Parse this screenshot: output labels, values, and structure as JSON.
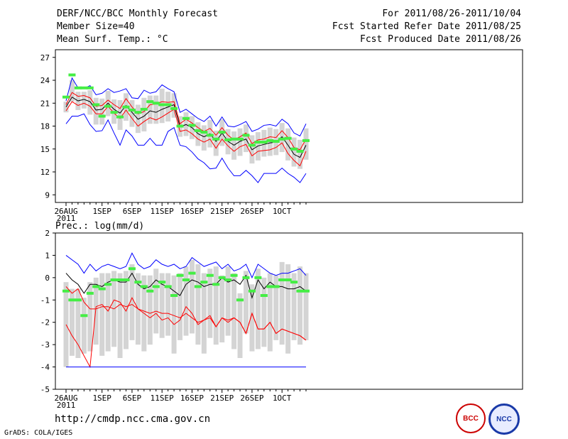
{
  "header": {
    "left_line1": "DERF/NCC/BCC Monthly Forecast",
    "left_line2": "Member Size=40",
    "left_line3": "Mean Surf. Temp.: °C",
    "right_line1": "For 2011/08/26-2011/10/04",
    "right_line2": "Fcst Started Refer Date 2011/08/25",
    "right_line3": "Fcst Produced Date 2011/08/26"
  },
  "footer": {
    "url": "http://cmdp.ncc.cma.gov.cn",
    "credit": "GrADS: COLA/IGES",
    "logo1_label": "BCC",
    "logo2_label": "NCC"
  },
  "chart_data": [
    {
      "type": "box-ensemble",
      "title": "Mean Surf. Temp.: °C",
      "ylim": [
        8,
        28
      ],
      "yticks": [
        9,
        12,
        15,
        18,
        21,
        24,
        27
      ],
      "x_tick_labels": [
        "26AUG\n2011",
        "1SEP",
        "6SEP",
        "11SEP",
        "16SEP",
        "21SEP",
        "26SEP",
        "1OCT"
      ],
      "x_tick_days": [
        0,
        6,
        11,
        16,
        21,
        26,
        31,
        36
      ],
      "days": 40,
      "series": [
        {
          "name": "max",
          "color": "#0000ff",
          "values": [
            18.3,
            19.3,
            19.3,
            19.6,
            18.2,
            17.3,
            17.4,
            18.8,
            17.1,
            15.5,
            17.5,
            16.7,
            15.5,
            15.5,
            16.4,
            15.5,
            15.5,
            17.3,
            17.8,
            15.5,
            15.3,
            14.6,
            13.7,
            13.2,
            12.4,
            12.5,
            13.8,
            12.5,
            11.5,
            11.5,
            12.2,
            11.5,
            10.6,
            11.8,
            11.8,
            11.8,
            12.5,
            11.8,
            11.3,
            10.6,
            11.8
          ]
        },
        {
          "name": "min",
          "color": "#0000ff",
          "values": [
            21.3,
            24.3,
            23.0,
            22.9,
            23.3,
            22.1,
            22.3,
            22.9,
            22.4,
            22.6,
            22.9,
            21.7,
            21.6,
            22.7,
            22.3,
            22.5,
            23.4,
            22.9,
            22.5,
            19.8,
            20.2,
            19.6,
            19.0,
            18.6,
            19.3,
            18.0,
            19.2,
            18.0,
            17.9,
            18.2,
            18.6,
            17.3,
            17.6,
            18.1,
            18.2,
            18.0,
            18.9,
            18.3,
            17.1,
            16.7,
            18.3
          ]
        },
        {
          "name": "upper",
          "color": "#ff0000",
          "values": [
            20.8,
            22.4,
            21.9,
            22.0,
            21.7,
            20.6,
            20.7,
            21.4,
            20.8,
            20.3,
            21.6,
            20.5,
            19.6,
            19.9,
            20.8,
            20.9,
            21.2,
            21.1,
            21.2,
            18.3,
            18.9,
            18.4,
            17.8,
            17.3,
            17.7,
            16.8,
            17.8,
            16.8,
            16.2,
            16.6,
            17.1,
            15.7,
            16.2,
            16.3,
            16.6,
            16.5,
            17.4,
            16.5,
            15.2,
            14.9,
            16.3
          ]
        },
        {
          "name": "lower",
          "color": "#ff0000",
          "values": [
            20.0,
            21.2,
            20.7,
            21.0,
            20.6,
            19.6,
            19.6,
            20.6,
            19.7,
            19.0,
            20.1,
            19.0,
            18.0,
            18.6,
            19.1,
            18.8,
            19.2,
            19.7,
            20.2,
            17.3,
            17.5,
            17.0,
            16.3,
            15.9,
            16.3,
            15.1,
            16.3,
            15.4,
            14.7,
            15.3,
            15.6,
            14.1,
            14.7,
            14.8,
            14.9,
            15.2,
            15.8,
            14.4,
            13.5,
            12.8,
            14.7
          ]
        },
        {
          "name": "mean",
          "color": "#000000",
          "values": [
            20.5,
            21.8,
            21.3,
            21.5,
            21.2,
            20.1,
            20.2,
            21.0,
            20.2,
            19.7,
            20.7,
            19.8,
            18.9,
            19.3,
            20.0,
            19.8,
            20.2,
            20.5,
            20.8,
            17.9,
            18.2,
            17.8,
            17.0,
            16.6,
            17.0,
            16.0,
            17.1,
            16.0,
            15.5,
            16.0,
            16.3,
            14.9,
            15.4,
            15.6,
            15.8,
            15.9,
            16.6,
            15.5,
            14.3,
            13.9,
            15.5
          ]
        },
        {
          "name": "observed",
          "color": "#44ee44",
          "values": [
            21.8,
            24.7,
            23.0,
            23.0,
            23.0,
            20.8,
            19.3,
            20.6,
            19.8,
            19.2,
            20.5,
            20.1,
            19.8,
            20.2,
            21.2,
            21.0,
            20.8,
            20.8,
            20.3,
            18.0,
            19.0,
            18.1,
            17.4,
            17.2,
            16.8,
            16.3,
            17.2,
            16.2,
            16.3,
            16.3,
            16.8,
            15.5,
            15.9,
            15.9,
            16.1,
            16.0,
            16.3,
            16.4,
            15.0,
            14.7,
            16.1
          ]
        }
      ],
      "boxes": {
        "lo": [
          19.8,
          21.2,
          20.1,
          20.3,
          19.5,
          18.2,
          18.2,
          19.3,
          18.3,
          17.5,
          18.7,
          17.9,
          17.1,
          17.3,
          18.3,
          18.3,
          18.4,
          18.6,
          19.1,
          16.6,
          16.7,
          16.3,
          15.4,
          14.8,
          15.2,
          14.1,
          15.4,
          14.3,
          13.6,
          14.1,
          14.6,
          13.1,
          13.5,
          14.0,
          14.1,
          14.2,
          14.6,
          13.5,
          12.7,
          12.4,
          13.6
        ],
        "hi": [
          21.2,
          24.0,
          22.5,
          22.5,
          22.7,
          21.7,
          21.6,
          22.6,
          21.5,
          21.4,
          22.3,
          21.4,
          20.8,
          21.7,
          22.0,
          22.0,
          22.9,
          22.5,
          22.3,
          19.3,
          19.8,
          19.3,
          18.5,
          18.1,
          18.8,
          17.4,
          18.9,
          17.6,
          17.3,
          17.7,
          18.2,
          16.8,
          17.2,
          17.5,
          17.8,
          17.6,
          18.4,
          17.7,
          16.5,
          16.2,
          17.7
        ]
      }
    },
    {
      "type": "box-ensemble",
      "title": "Prec.: log(mm/d)",
      "ylim": [
        -5,
        2
      ],
      "yticks": [
        -5,
        -4,
        -3,
        -2,
        -1,
        0,
        1,
        2
      ],
      "x_tick_labels": [
        "26AUG\n2011",
        "1SEP",
        "6SEP",
        "11SEP",
        "16SEP",
        "21SEP",
        "26SEP",
        "1OCT"
      ],
      "x_tick_days": [
        0,
        6,
        11,
        16,
        21,
        26,
        31,
        36
      ],
      "days": 40,
      "series": [
        {
          "name": "max",
          "color": "#0000ff",
          "values": [
            1.0,
            0.8,
            0.6,
            0.2,
            0.6,
            0.3,
            0.5,
            0.6,
            0.5,
            0.4,
            0.5,
            1.1,
            0.6,
            0.4,
            0.5,
            0.8,
            0.6,
            0.5,
            0.6,
            0.4,
            0.5,
            0.9,
            0.7,
            0.5,
            0.6,
            0.7,
            0.4,
            0.6,
            0.3,
            0.4,
            0.6,
            0.0,
            0.6,
            0.4,
            0.2,
            0.1,
            0.2,
            0.2,
            0.3,
            0.4,
            0.1
          ]
        },
        {
          "name": "upper",
          "color": "#000000",
          "values": [
            0.2,
            -0.1,
            -0.3,
            -0.7,
            -0.3,
            -0.3,
            -0.4,
            -0.2,
            -0.1,
            -0.2,
            -0.2,
            0.2,
            -0.3,
            -0.5,
            -0.4,
            -0.1,
            -0.3,
            -0.4,
            -0.6,
            -0.8,
            -0.3,
            -0.1,
            -0.2,
            -0.4,
            -0.3,
            -0.3,
            0.0,
            -0.2,
            -0.1,
            -0.3,
            0.1,
            -0.9,
            -0.1,
            -0.5,
            -0.2,
            -0.4,
            -0.4,
            -0.5,
            -0.5,
            -0.4,
            -0.6
          ]
        },
        {
          "name": "lower",
          "color": "#ff0000",
          "values": [
            -2.1,
            -2.6,
            -3.0,
            -3.5,
            -4.0,
            -1.3,
            -1.2,
            -1.5,
            -1.0,
            -1.1,
            -1.5,
            -0.9,
            -1.4,
            -1.6,
            -1.8,
            -1.6,
            -1.9,
            -1.8,
            -2.1,
            -1.9,
            -1.3,
            -1.6,
            -2.1,
            -1.9,
            -1.7,
            -2.2,
            -1.8,
            -2.0,
            -1.8,
            -2.0,
            -2.5,
            -1.6,
            -2.3,
            -2.3,
            -2.0,
            -2.5,
            -2.3,
            -2.4,
            -2.5,
            -2.6,
            -2.8
          ]
        },
        {
          "name": "min",
          "color": "#0000ff",
          "values": [
            -4,
            -4,
            -4,
            -4,
            -4,
            -4,
            -4,
            -4,
            -4,
            -4,
            -4,
            -4,
            -4,
            -4,
            -4,
            -4,
            -4,
            -4,
            -4,
            -4,
            -4,
            -4,
            -4,
            -4,
            -4,
            -4,
            -4,
            -4,
            -4,
            -4,
            -4,
            -4,
            -4,
            -4,
            -4,
            -4,
            -4,
            -4,
            -4,
            -4,
            -4
          ]
        },
        {
          "name": "observed",
          "color": "#44ee44",
          "values": [
            -0.6,
            -1.0,
            -1.0,
            -1.7,
            -0.7,
            -0.4,
            -0.5,
            -0.3,
            -0.1,
            -0.1,
            -0.1,
            0.4,
            -0.2,
            -0.4,
            -0.6,
            -0.4,
            -0.2,
            -0.4,
            -0.8,
            0.1,
            -0.1,
            0.2,
            -0.4,
            -0.2,
            0.1,
            -0.3,
            0.0,
            -0.1,
            0.1,
            -1.0,
            0.0,
            -0.6,
            0.0,
            -0.8,
            -0.4,
            -0.4,
            -0.1,
            -0.1,
            -0.2,
            -0.6,
            -0.6
          ]
        },
        {
          "name": "red-extra",
          "color": "#ff0000",
          "values": [
            -0.4,
            -0.7,
            -0.5,
            -1.1,
            -1.4,
            -1.4,
            -1.3,
            -1.3,
            -1.4,
            -1.2,
            -1.3,
            -1.2,
            -1.4,
            -1.5,
            -1.6,
            -1.5,
            -1.6,
            -1.6,
            -1.7,
            -1.8,
            -1.6,
            -1.8,
            -2.0,
            -1.9,
            -1.8,
            -2.2,
            -1.8,
            -1.9,
            -1.8,
            -2.0,
            -2.5,
            -1.6,
            -2.3,
            -2.3,
            -2.0,
            -2.5,
            -2.3,
            -2.4,
            -2.5,
            -2.6,
            -2.8
          ]
        }
      ],
      "boxes": {
        "lo": [
          -4,
          -3.5,
          -3.6,
          -3.4,
          -3.3,
          -3.0,
          -3.5,
          -3.3,
          -3.1,
          -3.6,
          -3.2,
          -2.8,
          -3.0,
          -3.3,
          -3.0,
          -2.5,
          -2.7,
          -2.6,
          -3.4,
          -2.8,
          -2.6,
          -2.5,
          -3.0,
          -3.4,
          -2.7,
          -3.0,
          -2.9,
          -2.6,
          -3.2,
          -3.6,
          -2.5,
          -3.3,
          -3.2,
          -3.1,
          -3.3,
          -2.8,
          -3.0,
          -3.4,
          -2.8,
          -3.0,
          -2.8
        ],
        "hi": [
          -0.2,
          -0.5,
          -0.5,
          -0.9,
          -0.2,
          0.0,
          0.2,
          0.2,
          0.3,
          0.2,
          0.3,
          0.6,
          0.2,
          0.1,
          0.1,
          0.4,
          0.2,
          0.2,
          0.1,
          0.2,
          0.5,
          0.8,
          0.6,
          0.2,
          0.4,
          0.5,
          0.1,
          0.5,
          0.2,
          -0.7,
          0.3,
          -0.3,
          0.4,
          0.0,
          0.2,
          0.1,
          0.7,
          0.6,
          0.2,
          0.5,
          0.2
        ]
      }
    }
  ]
}
